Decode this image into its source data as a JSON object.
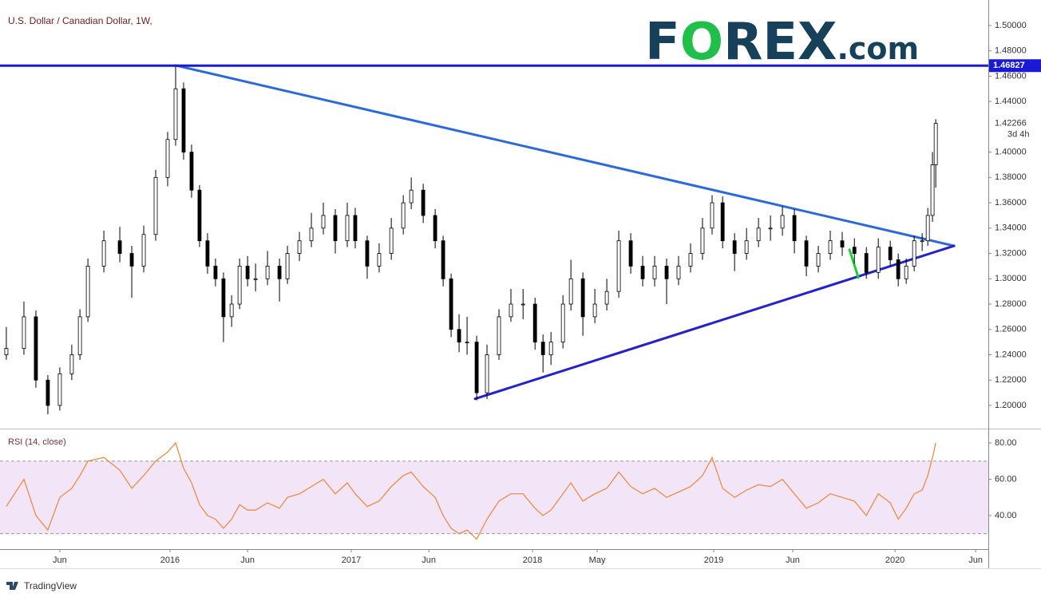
{
  "chart_data": {
    "type": "candlestick",
    "title": "U.S. Dollar / Canadian Dollar, 1W,",
    "logo": [
      "F",
      "O",
      "REX",
      ".com"
    ],
    "footer": "TradingView",
    "countdown": "3d 4h",
    "up_color": "#ffffff",
    "down_color": "#000000",
    "wick_color": "#000000",
    "x": [
      2015.097,
      2015.194,
      2015.26,
      2015.326,
      2015.392,
      2015.458,
      2015.503,
      2015.547,
      2015.635,
      2015.723,
      2015.789,
      2015.855,
      2015.921,
      2015.987,
      2016.031,
      2016.075,
      2016.119,
      2016.163,
      2016.207,
      2016.251,
      2016.295,
      2016.34,
      2016.384,
      2016.428,
      2016.472,
      2016.538,
      2016.604,
      2016.648,
      2016.714,
      2016.78,
      2016.846,
      2016.912,
      2016.978,
      2017.022,
      2017.088,
      2017.154,
      2017.221,
      2017.287,
      2017.331,
      2017.397,
      2017.463,
      2017.507,
      2017.551,
      2017.595,
      2017.639,
      2017.692,
      2017.749,
      2017.815,
      2017.881,
      2017.948,
      2018.014,
      2018.058,
      2018.102,
      2018.168,
      2018.212,
      2018.278,
      2018.344,
      2018.41,
      2018.476,
      2018.542,
      2018.608,
      2018.674,
      2018.74,
      2018.806,
      2018.872,
      2018.938,
      2018.991,
      2019.049,
      2019.115,
      2019.181,
      2019.247,
      2019.313,
      2019.379,
      2019.445,
      2019.511,
      2019.577,
      2019.643,
      2019.709,
      2019.776,
      2019.842,
      2019.908,
      2019.974,
      2020.018,
      2020.062,
      2020.106,
      2020.15,
      2020.181,
      2020.207,
      2020.225
    ],
    "open": [
      1.24,
      1.245,
      1.27,
      1.22,
      1.2,
      1.225,
      1.24,
      1.27,
      1.31,
      1.33,
      1.32,
      1.31,
      1.335,
      1.38,
      1.41,
      1.45,
      1.4,
      1.37,
      1.33,
      1.31,
      1.3,
      1.27,
      1.28,
      1.31,
      1.3,
      1.3,
      1.31,
      1.3,
      1.32,
      1.33,
      1.34,
      1.35,
      1.33,
      1.35,
      1.33,
      1.31,
      1.32,
      1.34,
      1.36,
      1.37,
      1.35,
      1.33,
      1.3,
      1.26,
      1.25,
      1.25,
      1.21,
      1.24,
      1.27,
      1.28,
      1.28,
      1.25,
      1.24,
      1.25,
      1.28,
      1.3,
      1.27,
      1.28,
      1.29,
      1.33,
      1.31,
      1.3,
      1.31,
      1.3,
      1.31,
      1.32,
      1.34,
      1.36,
      1.33,
      1.32,
      1.33,
      1.34,
      1.34,
      1.35,
      1.33,
      1.31,
      1.32,
      1.33,
      1.325,
      1.32,
      1.305,
      1.325,
      1.315,
      1.3,
      1.31,
      1.33,
      1.33,
      1.35,
      1.39
    ],
    "high": [
      1.262,
      1.282,
      1.275,
      1.224,
      1.23,
      1.248,
      1.276,
      1.316,
      1.338,
      1.341,
      1.326,
      1.342,
      1.386,
      1.416,
      1.469,
      1.455,
      1.406,
      1.374,
      1.336,
      1.316,
      1.305,
      1.287,
      1.316,
      1.318,
      1.312,
      1.322,
      1.316,
      1.326,
      1.337,
      1.352,
      1.36,
      1.355,
      1.36,
      1.356,
      1.334,
      1.328,
      1.348,
      1.366,
      1.38,
      1.375,
      1.355,
      1.334,
      1.304,
      1.272,
      1.27,
      1.255,
      1.248,
      1.276,
      1.292,
      1.292,
      1.285,
      1.256,
      1.258,
      1.287,
      1.315,
      1.305,
      1.292,
      1.3,
      1.338,
      1.336,
      1.318,
      1.318,
      1.316,
      1.318,
      1.328,
      1.348,
      1.366,
      1.365,
      1.336,
      1.34,
      1.348,
      1.35,
      1.357,
      1.355,
      1.334,
      1.326,
      1.338,
      1.337,
      1.332,
      1.325,
      1.332,
      1.33,
      1.32,
      1.316,
      1.334,
      1.336,
      1.356,
      1.4,
      1.426
    ],
    "low": [
      1.236,
      1.24,
      1.214,
      1.193,
      1.196,
      1.22,
      1.236,
      1.266,
      1.305,
      1.313,
      1.285,
      1.305,
      1.33,
      1.373,
      1.405,
      1.394,
      1.364,
      1.325,
      1.304,
      1.294,
      1.25,
      1.262,
      1.276,
      1.294,
      1.29,
      1.295,
      1.282,
      1.296,
      1.314,
      1.325,
      1.335,
      1.32,
      1.325,
      1.324,
      1.3,
      1.305,
      1.315,
      1.335,
      1.355,
      1.344,
      1.324,
      1.294,
      1.254,
      1.242,
      1.24,
      1.204,
      1.205,
      1.236,
      1.266,
      1.268,
      1.244,
      1.226,
      1.232,
      1.245,
      1.275,
      1.255,
      1.265,
      1.275,
      1.285,
      1.304,
      1.294,
      1.294,
      1.28,
      1.295,
      1.305,
      1.315,
      1.335,
      1.324,
      1.306,
      1.315,
      1.325,
      1.33,
      1.334,
      1.32,
      1.302,
      1.305,
      1.315,
      1.318,
      1.312,
      1.3,
      1.3,
      1.31,
      1.294,
      1.296,
      1.306,
      1.322,
      1.326,
      1.345,
      1.372
    ],
    "close": [
      1.245,
      1.27,
      1.22,
      1.2,
      1.225,
      1.24,
      1.27,
      1.31,
      1.33,
      1.32,
      1.31,
      1.335,
      1.38,
      1.41,
      1.45,
      1.4,
      1.37,
      1.33,
      1.31,
      1.3,
      1.27,
      1.28,
      1.31,
      1.3,
      1.3,
      1.31,
      1.3,
      1.32,
      1.33,
      1.34,
      1.35,
      1.33,
      1.35,
      1.33,
      1.31,
      1.32,
      1.34,
      1.36,
      1.37,
      1.35,
      1.33,
      1.3,
      1.26,
      1.25,
      1.25,
      1.21,
      1.24,
      1.27,
      1.28,
      1.28,
      1.25,
      1.24,
      1.25,
      1.28,
      1.3,
      1.27,
      1.28,
      1.29,
      1.33,
      1.31,
      1.3,
      1.31,
      1.3,
      1.31,
      1.32,
      1.34,
      1.36,
      1.33,
      1.32,
      1.33,
      1.34,
      1.34,
      1.35,
      1.33,
      1.31,
      1.32,
      1.33,
      1.325,
      1.32,
      1.305,
      1.325,
      1.315,
      1.3,
      1.31,
      1.33,
      1.33,
      1.35,
      1.39,
      1.42266
    ],
    "xlim": [
      2015.062,
      2020.515
    ],
    "xticks": [
      {
        "value": 2015.392,
        "label": "Jun"
      },
      2016,
      {
        "value": 2016.428,
        "label": "Jun"
      },
      2017,
      {
        "value": 2017.428,
        "label": "Jun"
      },
      2018,
      {
        "value": 2018.357,
        "label": "May"
      },
      2019,
      {
        "value": 2019.436,
        "label": "Jun"
      },
      2020,
      {
        "value": 2020.445,
        "label": "Jun"
      }
    ],
    "ylim": [
      1.1817,
      1.5176
    ],
    "yticks": [
      {
        "value": 1.2,
        "label": "1.20000"
      },
      {
        "value": 1.22,
        "label": "1.22000"
      },
      {
        "value": 1.24,
        "label": "1.24000"
      },
      {
        "value": 1.26,
        "label": "1.26000"
      },
      {
        "value": 1.28,
        "label": "1.28000"
      },
      {
        "value": 1.3,
        "label": "1.30000"
      },
      {
        "value": 1.32,
        "label": "1.32000"
      },
      {
        "value": 1.34,
        "label": "1.34000"
      },
      {
        "value": 1.36,
        "label": "1.36000"
      },
      {
        "value": 1.38,
        "label": "1.38000"
      },
      {
        "value": 1.4,
        "label": "1.40000"
      },
      {
        "value": 1.44,
        "label": "1.44000"
      },
      {
        "value": 1.46,
        "label": "1.46000"
      },
      {
        "value": 1.48,
        "label": "1.48000"
      },
      {
        "value": 1.5,
        "label": "1.50000"
      }
    ],
    "hline": {
      "value": 1.46827,
      "color": "#1a1ad6"
    },
    "trendlines": [
      {
        "x": [
          2016.031,
          2020.326
        ],
        "y": [
          1.4685,
          1.326
        ],
        "color": "#2b6ad8"
      },
      {
        "x": [
          2017.683,
          2020.326
        ],
        "y": [
          1.2052,
          1.326
        ],
        "color": "#2323c8"
      },
      {
        "x": [
          2019.749,
          2019.798
        ],
        "y": [
          1.323,
          1.301
        ],
        "color": "#22cc33"
      }
    ],
    "indicator": {
      "type": "line",
      "name": "RSI (14, close)",
      "color": "#f0843a",
      "band": [
        30,
        70
      ],
      "band_color": "#f3e5f8",
      "values": [
        45,
        60,
        40,
        32,
        50,
        55,
        62,
        70,
        72,
        65,
        55,
        62,
        70,
        75,
        80,
        66,
        58,
        46,
        40,
        38,
        33,
        38,
        46,
        43,
        43,
        47,
        44,
        50,
        52,
        56,
        60,
        52,
        58,
        52,
        45,
        48,
        56,
        62,
        64,
        56,
        50,
        40,
        33,
        30,
        32,
        27,
        38,
        48,
        52,
        52,
        44,
        40,
        43,
        52,
        58,
        48,
        52,
        55,
        64,
        56,
        52,
        55,
        50,
        53,
        56,
        62,
        72,
        55,
        50,
        54,
        57,
        56,
        60,
        52,
        44,
        47,
        52,
        50,
        48,
        40,
        52,
        47,
        38,
        44,
        52,
        54,
        62,
        72,
        80
      ],
      "ylim": [
        21.5,
        86.6
      ],
      "yticks": [
        {
          "value": 40,
          "label": "40.00"
        },
        {
          "value": 60,
          "label": "60.00"
        },
        {
          "value": 80,
          "label": "80.00"
        }
      ]
    }
  }
}
